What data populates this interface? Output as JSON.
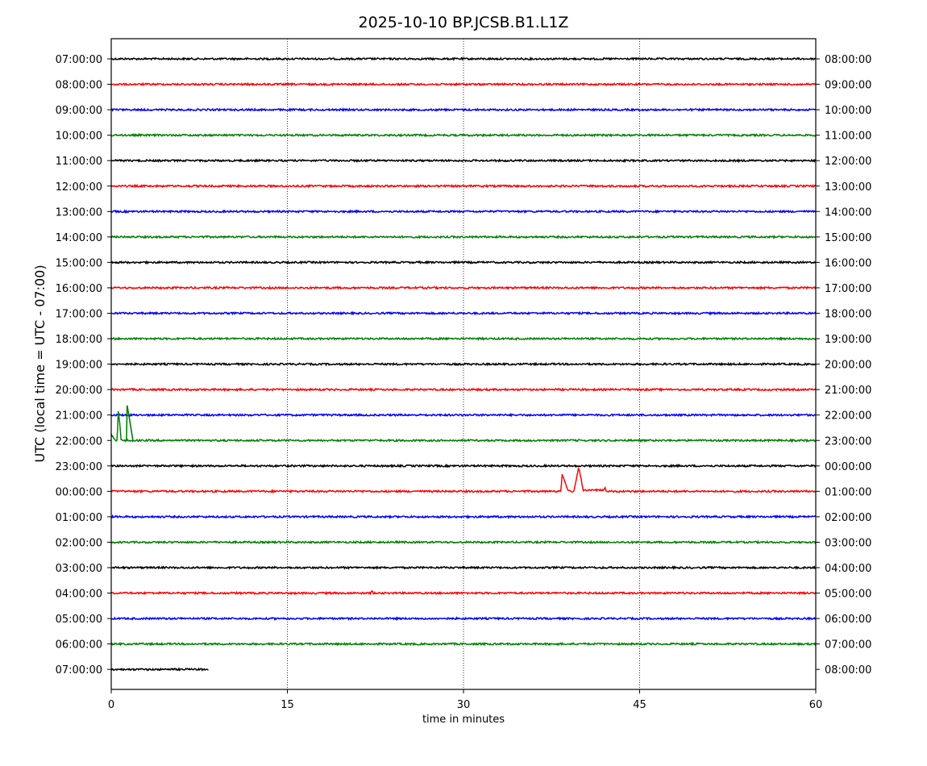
{
  "chart_data": {
    "type": "line",
    "title": "2025-10-10 BP.JCSB.B1.L1Z",
    "xlabel": "time in minutes",
    "ylabel": "UTC (local time = UTC - 07:00)",
    "xlim": [
      0,
      60
    ],
    "xticks": [
      0,
      15,
      30,
      45,
      60
    ],
    "grid": "vertical dotted at 15, 30, 45",
    "trace_colors": [
      "#000000",
      "#ff0000",
      "#0000ff",
      "#008000"
    ],
    "left_tick_labels": [
      "07:00:00",
      "08:00:00",
      "09:00:00",
      "10:00:00",
      "11:00:00",
      "12:00:00",
      "13:00:00",
      "14:00:00",
      "15:00:00",
      "16:00:00",
      "17:00:00",
      "18:00:00",
      "19:00:00",
      "20:00:00",
      "21:00:00",
      "22:00:00",
      "23:00:00",
      "00:00:00",
      "01:00:00",
      "02:00:00",
      "03:00:00",
      "04:00:00",
      "05:00:00",
      "06:00:00",
      "07:00:00"
    ],
    "right_tick_labels": [
      "08:00:00",
      "09:00:00",
      "10:00:00",
      "11:00:00",
      "12:00:00",
      "13:00:00",
      "14:00:00",
      "15:00:00",
      "16:00:00",
      "17:00:00",
      "18:00:00",
      "19:00:00",
      "20:00:00",
      "21:00:00",
      "22:00:00",
      "23:00:00",
      "00:00:00",
      "01:00:00",
      "02:00:00",
      "03:00:00",
      "04:00:00",
      "05:00:00",
      "06:00:00",
      "07:00:00",
      "08:00:00"
    ],
    "series": [
      {
        "end_minute": 60,
        "events": []
      },
      {
        "end_minute": 60,
        "events": []
      },
      {
        "end_minute": 60,
        "events": []
      },
      {
        "end_minute": 60,
        "events": []
      },
      {
        "end_minute": 60,
        "events": []
      },
      {
        "end_minute": 60,
        "events": []
      },
      {
        "end_minute": 60,
        "events": []
      },
      {
        "end_minute": 60,
        "events": []
      },
      {
        "end_minute": 60,
        "events": []
      },
      {
        "end_minute": 60,
        "events": []
      },
      {
        "end_minute": 60,
        "events": []
      },
      {
        "end_minute": 60,
        "events": []
      },
      {
        "end_minute": 60,
        "events": []
      },
      {
        "end_minute": 60,
        "events": []
      },
      {
        "end_minute": 60,
        "events": []
      },
      {
        "end_minute": 60,
        "events": [
          [
            0.0,
            0.25
          ],
          [
            0.3,
            0.0
          ],
          [
            0.5,
            0.0
          ],
          [
            0.6,
            1.2
          ],
          [
            0.7,
            0.8
          ],
          [
            0.85,
            0.0
          ]
        ]
      },
      {
        "end_minute": 60,
        "events": []
      },
      {
        "end_minute": 60,
        "events": [
          [
            38.3,
            0.0
          ],
          [
            38.4,
            0.7
          ],
          [
            38.6,
            0.45
          ],
          [
            38.9,
            0.0
          ],
          [
            39.4,
            0.0
          ],
          [
            39.8,
            1.0
          ],
          [
            40.2,
            0.05
          ],
          [
            41.9,
            0.05
          ],
          [
            42.05,
            0.15
          ],
          [
            42.2,
            0.0
          ]
        ]
      },
      {
        "end_minute": 60,
        "events": []
      },
      {
        "end_minute": 60,
        "events": []
      },
      {
        "end_minute": 60,
        "events": []
      },
      {
        "end_minute": 60,
        "events": [
          [
            22.1,
            0.0
          ],
          [
            22.2,
            0.12
          ],
          [
            22.3,
            0.0
          ]
        ]
      },
      {
        "end_minute": 60,
        "events": []
      },
      {
        "end_minute": 60,
        "events": []
      },
      {
        "end_minute": 8.3,
        "events": []
      }
    ],
    "extra_spikes": [
      {
        "row": 15,
        "points": [
          [
            1.3,
            0.0
          ],
          [
            1.35,
            1.45
          ],
          [
            1.55,
            0.9
          ],
          [
            1.85,
            0.0
          ]
        ]
      }
    ]
  }
}
